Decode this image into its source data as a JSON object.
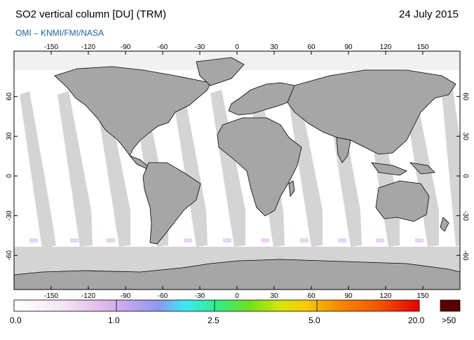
{
  "header": {
    "title": "SO2 vertical column [DU] (TRM)",
    "date": "24 July 2015",
    "credit": "OMI  –  KNMI/FMI/NASA"
  },
  "map": {
    "lon_ticks": [
      "-150",
      "-120",
      "-90",
      "-60",
      "-30",
      "0",
      "30",
      "60",
      "90",
      "120",
      "150"
    ],
    "lat_ticks_left": [
      "60",
      "30",
      "0",
      "-30",
      "-60"
    ],
    "lat_ticks_right": [
      "60",
      "30",
      "0",
      "-30",
      "-60"
    ],
    "colors": {
      "ocean_gap": "#d4d4d4",
      "land": "#a6a6a6",
      "swath": "#ffffff",
      "coast": "#000000"
    }
  },
  "colorbar": {
    "labels": [
      "0.0",
      "1.0",
      "2.5",
      "5.0",
      "20.0",
      ">50"
    ],
    "overflow_color": "#5a0000"
  }
}
